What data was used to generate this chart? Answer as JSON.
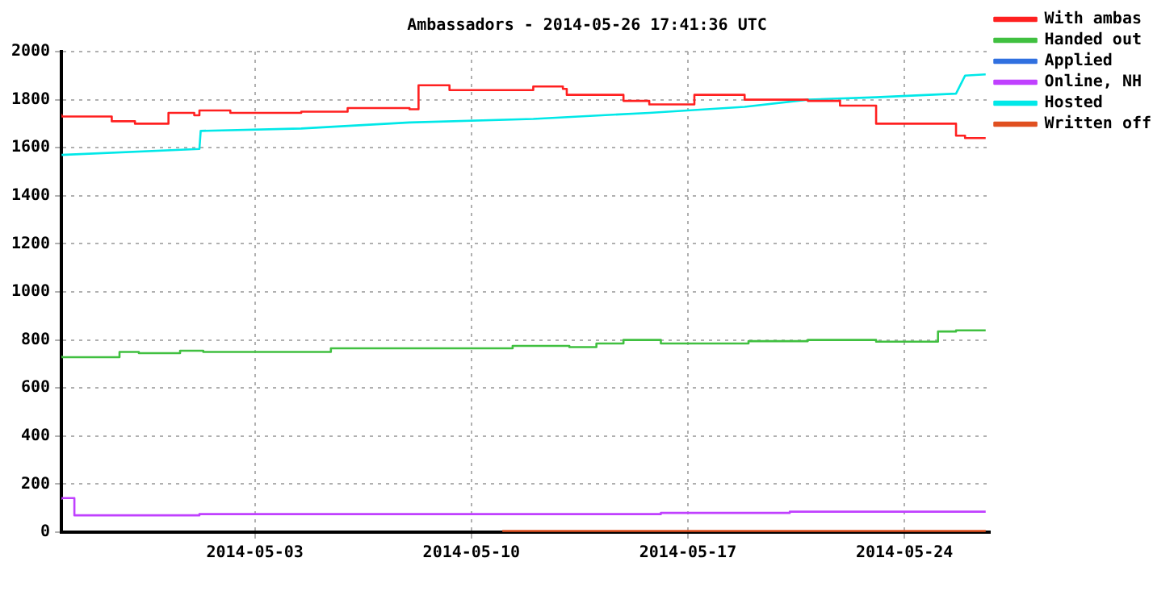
{
  "chart_data": {
    "type": "line",
    "title": "Ambassadors - 2014-05-26 17:41:36 UTC",
    "xlim": [
      "2014-04-26T18:00",
      "2014-05-26T18:00"
    ],
    "xticks": [
      "2014-05-03",
      "2014-05-10",
      "2014-05-17",
      "2014-05-24"
    ],
    "ylim": [
      0,
      2000
    ],
    "yticks": [
      0,
      200,
      400,
      600,
      800,
      1000,
      1200,
      1400,
      1600,
      1800,
      2000
    ],
    "grid": true,
    "legend": "right",
    "marker": "none",
    "series": [
      {
        "name": "With ambas",
        "type": "step",
        "color": "#ff2020",
        "x": [
          "2014-04-26T18:00",
          "2014-04-28T09:00",
          "2014-04-29T03:00",
          "2014-04-30T05:00",
          "2014-05-01T01:00",
          "2014-05-01T05:00",
          "2014-05-02T05:00",
          "2014-05-04T12:00",
          "2014-05-06T00:00",
          "2014-05-08T00:00",
          "2014-05-08T07:00",
          "2014-05-09T07:00",
          "2014-05-12T00:00",
          "2014-05-12T23:00",
          "2014-05-13T02:00",
          "2014-05-14T22:00",
          "2014-05-15T18:00",
          "2014-05-17T05:00",
          "2014-05-18T20:00",
          "2014-05-20T21:00",
          "2014-05-21T22:00",
          "2014-05-23T02:00",
          "2014-05-25T16:00",
          "2014-05-25T23:00",
          "2014-05-26T15:00"
        ],
        "values": [
          1740,
          1730,
          1710,
          1700,
          1745,
          1735,
          1755,
          1745,
          1750,
          1765,
          1760,
          1860,
          1840,
          1855,
          1845,
          1820,
          1795,
          1780,
          1820,
          1800,
          1795,
          1775,
          1700,
          1650,
          1640
        ]
      },
      {
        "name": "Handed out",
        "type": "step",
        "color": "#40c040",
        "x": [
          "2014-04-26T18:00",
          "2014-04-28T15:00",
          "2014-04-29T06:00",
          "2014-04-30T14:00",
          "2014-05-01T08:00",
          "2014-05-05T11:00",
          "2014-05-11T08:00",
          "2014-05-13T04:00",
          "2014-05-14T01:00",
          "2014-05-14T22:00",
          "2014-05-16T03:00",
          "2014-05-18T23:00",
          "2014-05-20T21:00",
          "2014-05-23T02:00",
          "2014-05-25T02:00",
          "2014-05-25T16:00",
          "2014-05-26T15:00"
        ],
        "values": [
          735,
          728,
          750,
          745,
          755,
          750,
          765,
          775,
          770,
          785,
          800,
          785,
          795,
          800,
          793,
          835,
          840
        ]
      },
      {
        "name": "Applied",
        "type": "step",
        "color": "#3070e0"
      },
      {
        "name": "Online, NH",
        "type": "step",
        "color": "#c040ff",
        "x": [
          "2014-04-26T18:00",
          "2014-04-27T04:00",
          "2014-05-01T05:00",
          "2014-05-16T03:00",
          "2014-05-20T07:00",
          "2014-05-26T06:00",
          "2014-05-26T15:00"
        ],
        "values": [
          135,
          142,
          70,
          75,
          80,
          85,
          85
        ]
      },
      {
        "name": "Hosted",
        "color": "#00e8e8",
        "x": [
          "2014-04-26T18:00",
          "2014-05-01T05:00",
          "2014-05-01T06:00",
          "2014-05-04T12:00",
          "2014-05-08T00:00",
          "2014-05-12T00:00",
          "2014-05-15T18:00",
          "2014-05-18T20:00",
          "2014-05-20T21:00",
          "2014-05-23T02:00",
          "2014-05-25T16:00",
          "2014-05-25T23:00",
          "2014-05-26T15:00"
        ],
        "values": [
          1570,
          1595,
          1670,
          1680,
          1705,
          1720,
          1745,
          1770,
          1800,
          1810,
          1825,
          1900,
          1905
        ]
      },
      {
        "name": "Written off",
        "type": "step",
        "color": "#e05020",
        "x": [
          "2014-05-11T00:00",
          "2014-05-26T15:00"
        ],
        "values": [
          5,
          5
        ]
      }
    ]
  }
}
